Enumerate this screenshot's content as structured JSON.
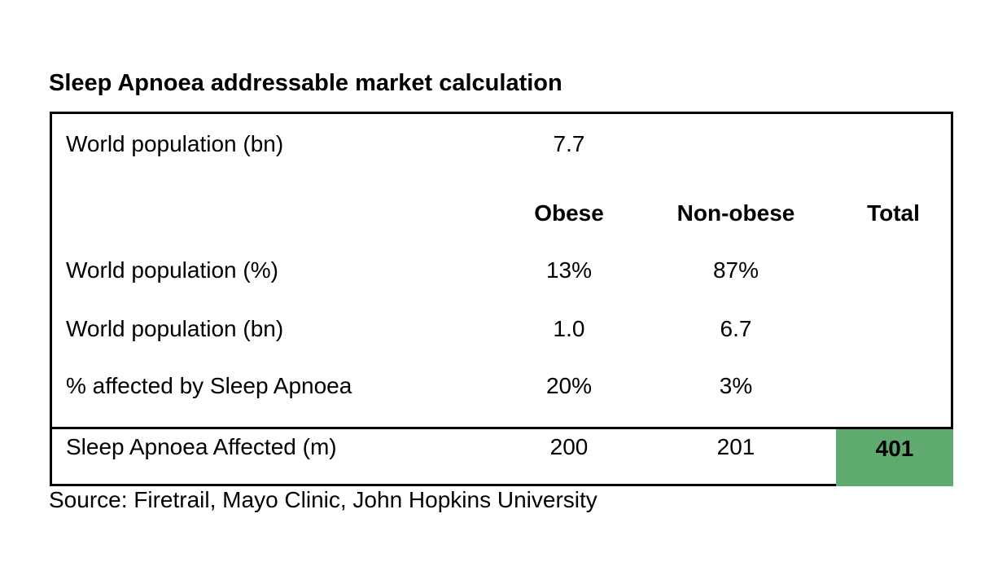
{
  "title": "Sleep Apnoea addressable market calculation",
  "world_population": {
    "label": "World population (bn)",
    "value": "7.7"
  },
  "columns": {
    "obese": "Obese",
    "non_obese": "Non-obese",
    "total": "Total"
  },
  "rows": [
    {
      "label": "World population (%)",
      "obese": "13%",
      "non_obese": "87%"
    },
    {
      "label": "World population (bn)",
      "obese": "1.0",
      "non_obese": "6.7"
    },
    {
      "label": "% affected by Sleep Apnoea",
      "obese": "20%",
      "non_obese": "3%"
    }
  ],
  "totals_row": {
    "label": "Sleep Apnoea Affected (m)",
    "obese": "200",
    "non_obese": "201",
    "total": "401",
    "total_highlight_color": "#5faa6e"
  },
  "source": "Source: Firetrail, Mayo Clinic, John Hopkins University"
}
